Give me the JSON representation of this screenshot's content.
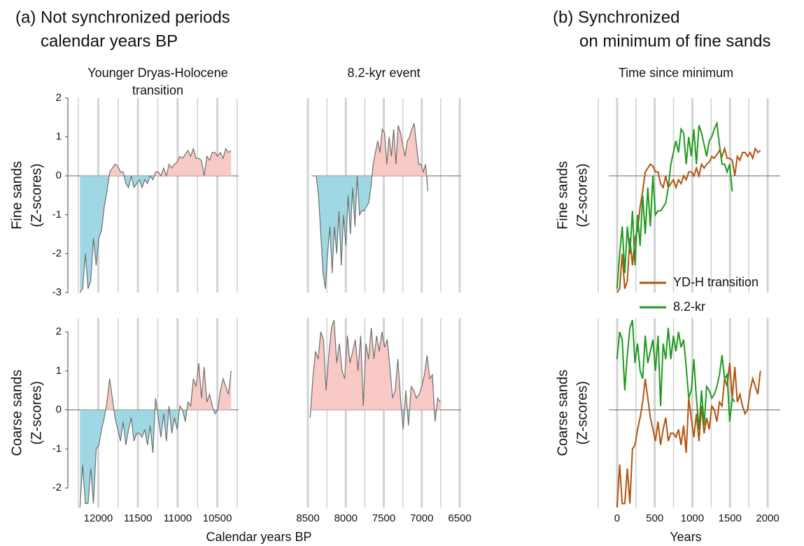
{
  "labels": {
    "panel_a": [
      "(a) Not synchronized periods",
      "calendar years BP"
    ],
    "panel_b": [
      "(b) Synchronized",
      "on minimum of fine sands"
    ],
    "xlabel_a": "Calendar years BP"
  },
  "chart_data": [
    {
      "type": "area",
      "title": [
        "Younger Dryas-Holocene",
        "transition"
      ],
      "ylabel": [
        "Fine sands",
        "(Z-scores)"
      ],
      "x": [
        12230,
        12196,
        12162,
        12128,
        12094,
        12060,
        12026,
        11992,
        11958,
        11924,
        11890,
        11856,
        11822,
        11788,
        11754,
        11720,
        11686,
        11652,
        11618,
        11584,
        11550,
        11516,
        11482,
        11448,
        11414,
        11380,
        11346,
        11312,
        11278,
        11244,
        11210,
        11176,
        11142,
        11108,
        11074,
        11040,
        11006,
        10972,
        10938,
        10904,
        10870,
        10836,
        10802,
        10768,
        10734,
        10700,
        10666,
        10632,
        10598,
        10564,
        10530,
        10496,
        10462,
        10428,
        10394,
        10360,
        10326
      ],
      "values": [
        -3.0,
        -2.9,
        -2.0,
        -2.9,
        -2.7,
        -1.6,
        -2.3,
        -1.6,
        -1.4,
        -0.8,
        -0.4,
        0.1,
        0.2,
        0.3,
        0.25,
        0.1,
        0.1,
        -0.2,
        -0.3,
        0.0,
        -0.3,
        -0.2,
        -0.1,
        -0.3,
        -0.1,
        -0.2,
        0.0,
        -0.1,
        0.1,
        0.1,
        0.0,
        0.2,
        0.0,
        0.3,
        0.2,
        0.3,
        0.35,
        0.5,
        0.45,
        0.55,
        0.65,
        0.5,
        0.7,
        0.45,
        0.45,
        0.4,
        0.0,
        0.5,
        0.4,
        0.6,
        0.6,
        0.5,
        0.6,
        0.45,
        0.7,
        0.6,
        0.65
      ],
      "xlim": [
        12250,
        10250
      ],
      "ylim": [
        -3,
        2
      ],
      "yticks": [
        2,
        1,
        0,
        -1,
        -2,
        -3
      ],
      "vlines": [
        12250,
        12000,
        11750,
        11500,
        11250,
        11000,
        10750,
        10500,
        10250
      ],
      "pos_color": "#f8c9c5",
      "neg_color": "#9fd8e3",
      "line_color": "#6e6e6e"
    },
    {
      "type": "area",
      "title": "8.2-kyr event",
      "x": [
        8390,
        8360,
        8330,
        8300,
        8270,
        8240,
        8210,
        8180,
        8150,
        8120,
        8090,
        8060,
        8030,
        8000,
        7970,
        7940,
        7910,
        7880,
        7850,
        7820,
        7790,
        7760,
        7730,
        7700,
        7670,
        7640,
        7610,
        7580,
        7550,
        7520,
        7490,
        7460,
        7430,
        7400,
        7370,
        7340,
        7310,
        7280,
        7250,
        7220,
        7190,
        7160,
        7130,
        7100,
        7070,
        7040,
        7010,
        6980,
        6950,
        6920
      ],
      "values": [
        0,
        -0.5,
        -1.5,
        -2.5,
        -2.9,
        -2.0,
        -1.3,
        -2.5,
        -1.3,
        -2.0,
        -0.9,
        -2.3,
        -1.0,
        -1.8,
        -0.5,
        -1.5,
        -0.3,
        -1.3,
        0,
        -1.0,
        -0.9,
        -0.9,
        -0.8,
        -0.7,
        -0.3,
        0.3,
        0.6,
        0.9,
        0.6,
        1.2,
        1.1,
        0.3,
        1.0,
        0.5,
        1.2,
        0.3,
        1.3,
        1.1,
        0.8,
        0.5,
        0.9,
        1.0,
        1.2,
        1.35,
        0.8,
        0.3,
        0.3,
        0.1,
        0.3,
        -0.4
      ],
      "xlim": [
        8500,
        6500
      ],
      "ylim": [
        -3,
        2
      ],
      "vlines": [
        8500,
        8250,
        8000,
        7750,
        7500,
        7250,
        7000,
        6750,
        6500
      ],
      "pos_color": "#f8c9c5",
      "neg_color": "#9fd8e3",
      "line_color": "#6e6e6e"
    },
    {
      "type": "area",
      "ylabel": [
        "Coarse sands",
        "(Z-scores)"
      ],
      "x": [
        12230,
        12196,
        12162,
        12128,
        12094,
        12060,
        12026,
        11992,
        11958,
        11924,
        11890,
        11856,
        11822,
        11788,
        11754,
        11720,
        11686,
        11652,
        11618,
        11584,
        11550,
        11516,
        11482,
        11448,
        11414,
        11380,
        11346,
        11312,
        11278,
        11244,
        11210,
        11176,
        11142,
        11108,
        11074,
        11040,
        11006,
        10972,
        10938,
        10904,
        10870,
        10836,
        10802,
        10768,
        10734,
        10700,
        10666,
        10632,
        10598,
        10564,
        10530,
        10496,
        10462,
        10428,
        10394,
        10360,
        10326
      ],
      "values": [
        -2.5,
        -1.4,
        -2.4,
        -2.4,
        -1.5,
        -2.4,
        -1.0,
        -0.9,
        -0.5,
        -0.2,
        0.2,
        0.8,
        0.3,
        -0.2,
        -0.5,
        -0.8,
        -0.3,
        -0.9,
        -0.5,
        -0.2,
        -0.8,
        -0.6,
        -0.6,
        -0.7,
        -0.5,
        -0.9,
        -0.4,
        -1.1,
        0.3,
        -0.2,
        -0.7,
        -0.1,
        -0.8,
        0.1,
        -0.6,
        -0.2,
        -0.5,
        0.1,
        0.0,
        -0.3,
        0.2,
        0.1,
        0.8,
        0.6,
        1.2,
        0.3,
        1.1,
        0.2,
        0.4,
        0.1,
        -0.1,
        0.0,
        0.5,
        0.8,
        0.6,
        0.4,
        1.0
      ],
      "xlim": [
        12250,
        10250
      ],
      "ylim": [
        -2.5,
        2.35
      ],
      "yticks": [
        2,
        1,
        0,
        -1,
        -2
      ],
      "xticks": [
        12000,
        11500,
        11000,
        10500
      ],
      "vlines": [
        12250,
        12000,
        11750,
        11500,
        11250,
        11000,
        10750,
        10500,
        10250
      ],
      "pos_color": "#f8c9c5",
      "neg_color": "#9fd8e3",
      "line_color": "#6e6e6e"
    },
    {
      "type": "area",
      "x": [
        8470,
        8435,
        8400,
        8365,
        8330,
        8295,
        8260,
        8225,
        8190,
        8155,
        8120,
        8085,
        8050,
        8015,
        7980,
        7945,
        7910,
        7875,
        7840,
        7805,
        7770,
        7735,
        7700,
        7665,
        7630,
        7595,
        7560,
        7525,
        7490,
        7455,
        7420,
        7385,
        7350,
        7315,
        7280,
        7245,
        7210,
        7175,
        7140,
        7105,
        7070,
        7035,
        7000,
        6965,
        6930,
        6895,
        6860,
        6825,
        6790,
        6755
      ],
      "values": [
        -0.2,
        0.8,
        1.5,
        1.3,
        2.0,
        1.8,
        0.5,
        1.4,
        2.1,
        2.3,
        1.2,
        1.7,
        1.0,
        0.8,
        1.9,
        1.2,
        1.5,
        1.8,
        1.0,
        1.9,
        0.1,
        1.7,
        1.3,
        2.1,
        1.3,
        1.9,
        1.5,
        2.0,
        1.6,
        1.8,
        1.1,
        0.3,
        0.5,
        1.3,
        0.3,
        -0.5,
        0.5,
        -0.4,
        0.6,
        0.5,
        0.3,
        0.4,
        0.6,
        0.9,
        1.4,
        0.8,
        0.9,
        -0.3,
        0.3,
        0.2
      ],
      "xlim": [
        8500,
        6500
      ],
      "ylim": [
        -2.5,
        2.35
      ],
      "xticks": [
        8500,
        8000,
        7500,
        7000,
        6500
      ],
      "vlines": [
        8500,
        8250,
        8000,
        7750,
        7500,
        7250,
        7000,
        6750,
        6500
      ],
      "pos_color": "#f8c9c5",
      "neg_color": "#9fd8e3",
      "line_color": "#6e6e6e"
    },
    {
      "type": "line",
      "title": "Time since minimum",
      "ylabel": [
        "Fine sands",
        "(Z-scores)"
      ],
      "legend": "lower center",
      "xlim": [
        -250,
        2000
      ],
      "ylim": [
        -3,
        2
      ],
      "vlines": [
        -250,
        0,
        250,
        500,
        750,
        1000,
        1250,
        1500,
        1750,
        2000
      ],
      "series": [
        {
          "name": "YD-H transition",
          "color": "#b4530f",
          "x": [
            0,
            34,
            68,
            102,
            136,
            170,
            204,
            238,
            272,
            306,
            340,
            374,
            408,
            442,
            476,
            510,
            544,
            578,
            612,
            646,
            680,
            714,
            748,
            782,
            816,
            850,
            884,
            918,
            952,
            986,
            1020,
            1054,
            1088,
            1122,
            1156,
            1190,
            1224,
            1258,
            1292,
            1326,
            1360,
            1394,
            1428,
            1462,
            1496,
            1530,
            1564,
            1598,
            1632,
            1666,
            1700,
            1734,
            1768,
            1802,
            1836,
            1870,
            1904
          ],
          "values": [
            -3.0,
            -2.9,
            -2.0,
            -2.9,
            -2.7,
            -1.6,
            -2.3,
            -1.6,
            -1.4,
            -0.8,
            -0.4,
            0.1,
            0.2,
            0.3,
            0.25,
            0.1,
            0.1,
            -0.2,
            -0.3,
            0.0,
            -0.3,
            -0.2,
            -0.1,
            -0.3,
            -0.1,
            -0.2,
            0.0,
            -0.1,
            0.1,
            0.1,
            0.0,
            0.2,
            0.0,
            0.3,
            0.2,
            0.3,
            0.35,
            0.5,
            0.45,
            0.55,
            0.65,
            0.5,
            0.7,
            0.45,
            0.45,
            0.4,
            0.0,
            0.5,
            0.4,
            0.6,
            0.6,
            0.5,
            0.6,
            0.45,
            0.7,
            0.6,
            0.65
          ]
        },
        {
          "name": "8.2-kr",
          "color": "#1f9a1f",
          "x": [
            0,
            34,
            68,
            102,
            136,
            170,
            204,
            238,
            272,
            306,
            340,
            374,
            408,
            442,
            476,
            510,
            544,
            578,
            612,
            646,
            680,
            714,
            748,
            782,
            816,
            850,
            884,
            918,
            952,
            986,
            1020,
            1054,
            1088,
            1122,
            1156,
            1190,
            1224,
            1258,
            1292,
            1326,
            1360,
            1394,
            1428,
            1462,
            1496,
            1530
          ],
          "values": [
            -2.9,
            -2.0,
            -1.3,
            -2.5,
            -1.3,
            -2.0,
            -0.9,
            -2.3,
            -1.0,
            -1.8,
            -0.5,
            -1.5,
            -0.3,
            -1.3,
            0,
            -1.0,
            -0.9,
            -0.9,
            -0.8,
            -0.7,
            -0.3,
            0.3,
            0.6,
            0.9,
            0.6,
            1.2,
            1.1,
            0.3,
            1.0,
            0.5,
            1.2,
            0.3,
            1.3,
            1.1,
            0.8,
            0.5,
            0.9,
            1.0,
            1.2,
            1.35,
            0.8,
            0.3,
            0.3,
            0.1,
            0.3,
            -0.4
          ]
        }
      ]
    },
    {
      "type": "line",
      "ylabel": [
        "Coarse sands",
        "(Z-scores)"
      ],
      "xlabel": "Years",
      "xlim": [
        -250,
        2000
      ],
      "ylim": [
        -2.5,
        2.35
      ],
      "xticks": [
        0,
        500,
        1000,
        1500,
        2000
      ],
      "vlines": [
        -250,
        0,
        250,
        500,
        750,
        1000,
        1250,
        1500,
        1750,
        2000
      ],
      "series": [
        {
          "color": "#b4530f",
          "x": [
            0,
            34,
            68,
            102,
            136,
            170,
            204,
            238,
            272,
            306,
            340,
            374,
            408,
            442,
            476,
            510,
            544,
            578,
            612,
            646,
            680,
            714,
            748,
            782,
            816,
            850,
            884,
            918,
            952,
            986,
            1020,
            1054,
            1088,
            1122,
            1156,
            1190,
            1224,
            1258,
            1292,
            1326,
            1360,
            1394,
            1428,
            1462,
            1496,
            1530,
            1564,
            1598,
            1632,
            1666,
            1700,
            1734,
            1768,
            1802,
            1836,
            1870,
            1904
          ],
          "values": [
            -2.5,
            -1.4,
            -2.4,
            -2.4,
            -1.5,
            -2.4,
            -1.0,
            -0.9,
            -0.5,
            -0.2,
            0.2,
            0.8,
            0.3,
            -0.2,
            -0.5,
            -0.8,
            -0.3,
            -0.9,
            -0.5,
            -0.2,
            -0.8,
            -0.6,
            -0.6,
            -0.7,
            -0.5,
            -0.9,
            -0.4,
            -1.1,
            0.3,
            -0.2,
            -0.7,
            -0.1,
            -0.8,
            0.1,
            -0.6,
            -0.2,
            -0.5,
            0.1,
            0.0,
            -0.3,
            0.2,
            0.1,
            0.8,
            0.6,
            1.2,
            0.3,
            1.1,
            0.2,
            0.4,
            0.1,
            -0.1,
            0.0,
            0.5,
            0.8,
            0.6,
            0.4,
            1.0
          ]
        },
        {
          "color": "#1f9a1f",
          "x": [
            0,
            34,
            68,
            102,
            136,
            170,
            204,
            238,
            272,
            306,
            340,
            374,
            408,
            442,
            476,
            510,
            544,
            578,
            612,
            646,
            680,
            714,
            748,
            782,
            816,
            850,
            884,
            918,
            952,
            986,
            1020,
            1054,
            1088,
            1122,
            1156,
            1190,
            1224,
            1258,
            1292,
            1326,
            1360,
            1394,
            1428,
            1462,
            1496,
            1530,
            1564
          ],
          "values": [
            1.3,
            2.0,
            1.8,
            0.5,
            1.4,
            2.1,
            2.3,
            1.2,
            1.7,
            1.0,
            0.8,
            1.9,
            1.2,
            1.5,
            1.8,
            1.0,
            1.9,
            0.1,
            1.7,
            1.3,
            2.1,
            1.3,
            1.9,
            1.5,
            2.0,
            1.6,
            1.8,
            1.1,
            0.3,
            0.5,
            1.3,
            0.3,
            -0.5,
            0.5,
            -0.4,
            0.6,
            0.5,
            0.3,
            0.4,
            0.6,
            0.9,
            1.4,
            0.8,
            0.9,
            -0.3,
            0.3,
            0.2
          ]
        }
      ]
    }
  ]
}
